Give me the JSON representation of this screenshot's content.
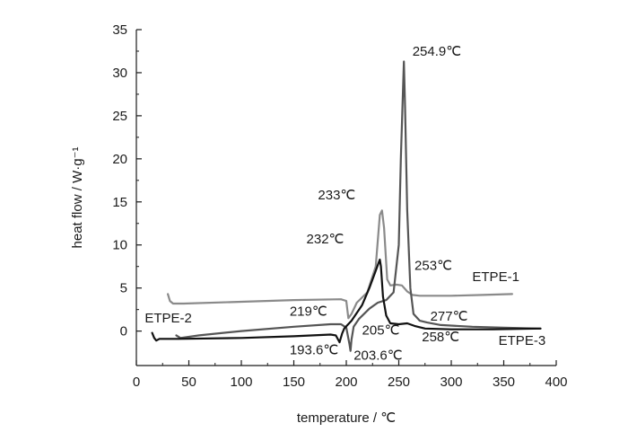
{
  "chart_data": {
    "type": "line",
    "title": "",
    "xlabel": "temperature / ℃",
    "ylabel": "heat flow / W·g⁻¹",
    "xlim": [
      0,
      400
    ],
    "ylim": [
      -4,
      35
    ],
    "x_ticks": [
      0,
      50,
      100,
      150,
      200,
      250,
      300,
      350,
      400
    ],
    "y_ticks": [
      0,
      5,
      10,
      15,
      20,
      25,
      30,
      35
    ],
    "grid": false,
    "legend": "none (series labeled directly on curves)",
    "series": [
      {
        "name": "ETPE-1",
        "color": "#8a8a8a",
        "points": [
          [
            30,
            4.3
          ],
          [
            32,
            3.5
          ],
          [
            35,
            3.2
          ],
          [
            45,
            3.2
          ],
          [
            100,
            3.4
          ],
          [
            150,
            3.6
          ],
          [
            195,
            3.7
          ],
          [
            200,
            3.5
          ],
          [
            202,
            1.5
          ],
          [
            205,
            2.0
          ],
          [
            210,
            3.3
          ],
          [
            220,
            4.5
          ],
          [
            228,
            7.5
          ],
          [
            232,
            13.5
          ],
          [
            234,
            14.0
          ],
          [
            236,
            12.0
          ],
          [
            239,
            6.0
          ],
          [
            242,
            5.3
          ],
          [
            248,
            5.4
          ],
          [
            253,
            5.3
          ],
          [
            258,
            4.6
          ],
          [
            263,
            4.2
          ],
          [
            270,
            4.1
          ],
          [
            300,
            4.1
          ],
          [
            330,
            4.2
          ],
          [
            358,
            4.3
          ]
        ]
      },
      {
        "name": "ETPE-2",
        "color": "#555555",
        "points": [
          [
            38,
            -0.5
          ],
          [
            42,
            -0.8
          ],
          [
            60,
            -0.5
          ],
          [
            100,
            0.0
          ],
          [
            150,
            0.5
          ],
          [
            185,
            0.8
          ],
          [
            195,
            0.8
          ],
          [
            200,
            0.4
          ],
          [
            203,
            -1.5
          ],
          [
            204,
            -2.3
          ],
          [
            205,
            -1.0
          ],
          [
            207,
            0.5
          ],
          [
            212,
            1.4
          ],
          [
            222,
            2.6
          ],
          [
            230,
            3.3
          ],
          [
            238,
            3.6
          ],
          [
            245,
            4.5
          ],
          [
            250,
            10.0
          ],
          [
            252,
            20.0
          ],
          [
            254,
            28.0
          ],
          [
            254.9,
            31.3
          ],
          [
            256,
            26.0
          ],
          [
            258,
            14.0
          ],
          [
            261,
            5.0
          ],
          [
            264,
            2.0
          ],
          [
            270,
            1.2
          ],
          [
            277,
            1.0
          ],
          [
            290,
            0.7
          ],
          [
            320,
            0.5
          ],
          [
            350,
            0.4
          ],
          [
            385,
            0.3
          ]
        ]
      },
      {
        "name": "ETPE-3",
        "color": "#111111",
        "points": [
          [
            15,
            -0.2
          ],
          [
            17,
            -0.8
          ],
          [
            19,
            -1.1
          ],
          [
            22,
            -0.9
          ],
          [
            40,
            -0.9
          ],
          [
            100,
            -0.8
          ],
          [
            150,
            -0.6
          ],
          [
            185,
            -0.4
          ],
          [
            190,
            -0.5
          ],
          [
            193.6,
            -1.3
          ],
          [
            196,
            -0.3
          ],
          [
            198,
            0.3
          ],
          [
            205,
            1.2
          ],
          [
            215,
            3.0
          ],
          [
            222,
            5.0
          ],
          [
            228,
            7.0
          ],
          [
            231,
            8.0
          ],
          [
            232,
            8.3
          ],
          [
            233,
            7.5
          ],
          [
            235,
            4.0
          ],
          [
            238,
            1.8
          ],
          [
            242,
            0.9
          ],
          [
            250,
            0.8
          ],
          [
            258,
            0.9
          ],
          [
            265,
            0.6
          ],
          [
            275,
            0.3
          ],
          [
            300,
            0.2
          ],
          [
            340,
            0.2
          ],
          [
            385,
            0.3
          ]
        ]
      }
    ],
    "series_labels": [
      {
        "text": "ETPE-1",
        "x": 320,
        "y": 5.8
      },
      {
        "text": "ETPE-2",
        "x": 8,
        "y": 1.0
      },
      {
        "text": "ETPE-3",
        "x": 345,
        "y": -1.6
      }
    ],
    "annotations": [
      {
        "text": "254.9℃",
        "x": 263,
        "y": 32.0
      },
      {
        "text": "233℃",
        "x": 173,
        "y": 15.3
      },
      {
        "text": "232℃",
        "x": 162,
        "y": 10.2
      },
      {
        "text": "253℃",
        "x": 265,
        "y": 7.1
      },
      {
        "text": "219℃",
        "x": 146,
        "y": 1.8
      },
      {
        "text": "205℃",
        "x": 215,
        "y": -0.4
      },
      {
        "text": "277℃",
        "x": 280,
        "y": 1.2
      },
      {
        "text": "258℃",
        "x": 272,
        "y": -1.2
      },
      {
        "text": "193.6℃",
        "x": 146,
        "y": -2.7
      },
      {
        "text": "203.6℃",
        "x": 207,
        "y": -3.3
      }
    ]
  }
}
